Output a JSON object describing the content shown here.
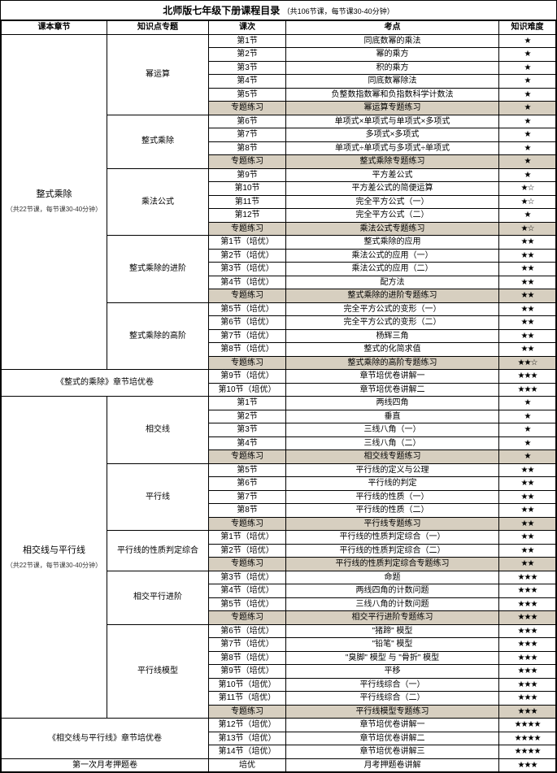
{
  "title": "北师版七年级下册课程目录",
  "subtitle": "（共106节课，每节课30-40分钟）",
  "headers": {
    "chapter": "课本章节",
    "topic": "知识点专题",
    "lesson": "课次",
    "point": "考点",
    "difficulty": "知识难度"
  },
  "sections": [
    {
      "chapter": {
        "name": "整式乘除",
        "note": "（共22节课，每节课30-40分钟）",
        "rowspan": 28
      },
      "topics": [
        {
          "name": "幂运算",
          "rowspan": 6,
          "rows": [
            {
              "lesson": "第1节",
              "point": "同底数幂的乘法",
              "diff": "★"
            },
            {
              "lesson": "第2节",
              "point": "幂的乘方",
              "diff": "★"
            },
            {
              "lesson": "第3节",
              "point": "积的乘方",
              "diff": "★"
            },
            {
              "lesson": "第4节",
              "point": "同底数幂除法",
              "diff": "★"
            },
            {
              "lesson": "第5节",
              "point": "负整数指数幂和负指数科学计数法",
              "diff": "★"
            },
            {
              "lesson": "专题练习",
              "point": "幂运算专题练习",
              "diff": "★",
              "shaded": true
            }
          ]
        },
        {
          "name": "整式乘除",
          "rowspan": 4,
          "rows": [
            {
              "lesson": "第6节",
              "point": "单项式×单项式与单项式×多项式",
              "diff": "★"
            },
            {
              "lesson": "第7节",
              "point": "多项式×多项式",
              "diff": "★"
            },
            {
              "lesson": "第8节",
              "point": "单项式÷单项式与多项式÷单项式",
              "diff": "★"
            },
            {
              "lesson": "专题练习",
              "point": "整式乘除专题练习",
              "diff": "★",
              "shaded": true
            }
          ]
        },
        {
          "name": "乘法公式",
          "rowspan": 5,
          "rows": [
            {
              "lesson": "第9节",
              "point": "平方差公式",
              "diff": "★"
            },
            {
              "lesson": "第10节",
              "point": "平方差公式的简便运算",
              "diff": "★☆"
            },
            {
              "lesson": "第11节",
              "point": "完全平方公式（一）",
              "diff": "★☆"
            },
            {
              "lesson": "第12节",
              "point": "完全平方公式（二）",
              "diff": "★"
            },
            {
              "lesson": "专题练习",
              "point": "乘法公式专题练习",
              "diff": "★☆",
              "shaded": true
            }
          ]
        },
        {
          "name": "整式乘除的进阶",
          "rowspan": 5,
          "rows": [
            {
              "lesson": "第1节（培优）",
              "point": "整式乘除的应用",
              "diff": "★★"
            },
            {
              "lesson": "第2节（培优）",
              "point": "乘法公式的应用（一）",
              "diff": "★★"
            },
            {
              "lesson": "第3节（培优）",
              "point": "乘法公式的应用（二）",
              "diff": "★★"
            },
            {
              "lesson": "第4节（培优）",
              "point": "配方法",
              "diff": "★★"
            },
            {
              "lesson": "专题练习",
              "point": "整式乘除的进阶专题练习",
              "diff": "★★",
              "shaded": true
            }
          ]
        },
        {
          "name": "整式乘除的高阶",
          "rowspan": 5,
          "rows": [
            {
              "lesson": "第5节（培优）",
              "point": "完全平方公式的变形（一）",
              "diff": "★★"
            },
            {
              "lesson": "第6节（培优）",
              "point": "完全平方公式的变形（二）",
              "diff": "★★"
            },
            {
              "lesson": "第7节（培优）",
              "point": "杨辉三角",
              "diff": "★★"
            },
            {
              "lesson": "第8节（培优）",
              "point": "整式的化简求值",
              "diff": "★★"
            },
            {
              "lesson": "专题练习",
              "point": "整式乘除的高阶专题练习",
              "diff": "★★☆",
              "shaded": true
            }
          ]
        },
        {
          "name": "《整式的乘除》章节培优卷",
          "rowspan": 2,
          "wide": true,
          "rows": [
            {
              "lesson": "第9节（培优）",
              "point": "章节培优卷讲解一",
              "diff": "★★★"
            },
            {
              "lesson": "第10节（培优）",
              "point": "章节培优卷讲解二",
              "diff": "★★★"
            }
          ]
        }
      ]
    },
    {
      "chapter": {
        "name": "相交线与平行线",
        "note": "（共22节课，每节课30-40分钟）",
        "rowspan": 29
      },
      "topics": [
        {
          "name": "相交线",
          "rowspan": 5,
          "rows": [
            {
              "lesson": "第1节",
              "point": "两线四角",
              "diff": "★"
            },
            {
              "lesson": "第2节",
              "point": "垂直",
              "diff": "★"
            },
            {
              "lesson": "第3节",
              "point": "三线八角（一）",
              "diff": "★"
            },
            {
              "lesson": "第4节",
              "point": "三线八角（二）",
              "diff": "★"
            },
            {
              "lesson": "专题练习",
              "point": "相交线专题练习",
              "diff": "★",
              "shaded": true
            }
          ]
        },
        {
          "name": "平行线",
          "rowspan": 5,
          "rows": [
            {
              "lesson": "第5节",
              "point": "平行线的定义与公理",
              "diff": "★★"
            },
            {
              "lesson": "第6节",
              "point": "平行线的判定",
              "diff": "★★"
            },
            {
              "lesson": "第7节",
              "point": "平行线的性质（一）",
              "diff": "★★"
            },
            {
              "lesson": "第8节",
              "point": "平行线的性质（二）",
              "diff": "★★"
            },
            {
              "lesson": "专题练习",
              "point": "平行线专题练习",
              "diff": "★★",
              "shaded": true
            }
          ]
        },
        {
          "name": "平行线的性质判定综合",
          "rowspan": 3,
          "rows": [
            {
              "lesson": "第1节（培优）",
              "point": "平行线的性质判定综合（一）",
              "diff": "★★"
            },
            {
              "lesson": "第2节（培优）",
              "point": "平行线的性质判定综合（二）",
              "diff": "★★"
            },
            {
              "lesson": "专题练习",
              "point": "平行线的性质判定综合专题练习",
              "diff": "★★",
              "shaded": true
            }
          ]
        },
        {
          "name": "相交平行进阶",
          "rowspan": 4,
          "rows": [
            {
              "lesson": "第3节（培优）",
              "point": "命题",
              "diff": "★★★"
            },
            {
              "lesson": "第4节（培优）",
              "point": "两线四角的计数问题",
              "diff": "★★★"
            },
            {
              "lesson": "第5节（培优）",
              "point": "三线八角的计数问题",
              "diff": "★★★"
            },
            {
              "lesson": "专题练习",
              "point": "相交平行进阶专题练习",
              "diff": "★★★",
              "shaded": true
            }
          ]
        },
        {
          "name": "平行线模型",
          "rowspan": 7,
          "rows": [
            {
              "lesson": "第6节（培优）",
              "point": "\"猪蹄\" 模型",
              "diff": "★★★"
            },
            {
              "lesson": "第7节（培优）",
              "point": "\"铅笔\" 模型",
              "diff": "★★★"
            },
            {
              "lesson": "第8节（培优）",
              "point": "\"臭脚\" 模型 与 \"骨折\" 模型",
              "diff": "★★★"
            },
            {
              "lesson": "第9节（培优）",
              "point": "平移",
              "diff": "★★★"
            },
            {
              "lesson": "第10节（培优）",
              "point": "平行线综合（一）",
              "diff": "★★★"
            },
            {
              "lesson": "第11节（培优）",
              "point": "平行线综合（二）",
              "diff": "★★★"
            },
            {
              "lesson": "专题练习",
              "point": "平行线模型专题练习",
              "diff": "★★★",
              "shaded": true
            }
          ]
        },
        {
          "name": "《相交线与平行线》章节培优卷",
          "rowspan": 3,
          "wide": true,
          "rows": [
            {
              "lesson": "第12节（培优）",
              "point": "章节培优卷讲解一",
              "diff": "★★★★"
            },
            {
              "lesson": "第13节（培优）",
              "point": "章节培优卷讲解二",
              "diff": "★★★★"
            },
            {
              "lesson": "第14节（培优）",
              "point": "章节培优卷讲解三",
              "diff": "★★★★"
            }
          ]
        }
      ]
    }
  ],
  "finalRow": {
    "chapter": "第一次月考押题卷",
    "lesson": "培优",
    "point": "月考押题卷讲解",
    "diff": "★★★"
  }
}
